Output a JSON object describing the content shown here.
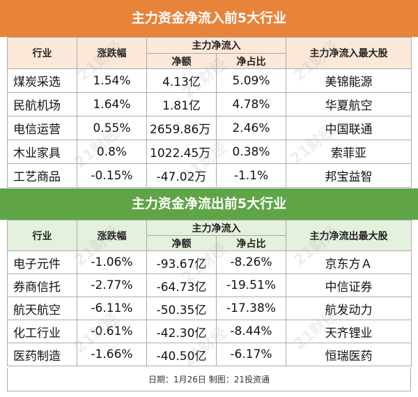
{
  "inflow": {
    "title": "主力资金净流入前5大行业",
    "headers": {
      "industry": "行业",
      "change": "涨跌幅",
      "group": "主力净流入",
      "amount": "净额",
      "ratio": "净占比",
      "top_stock": "主力净流入最大股"
    },
    "rows": [
      {
        "industry": "煤炭采选",
        "change": "1.54%",
        "amount": "4.13亿",
        "ratio": "5.09%",
        "top_stock": "美锦能源"
      },
      {
        "industry": "民航机场",
        "change": "1.64%",
        "amount": "1.81亿",
        "ratio": "4.78%",
        "top_stock": "华夏航空"
      },
      {
        "industry": "电信运营",
        "change": "0.55%",
        "amount": "2659.86万",
        "ratio": "2.46%",
        "top_stock": "中国联通"
      },
      {
        "industry": "木业家具",
        "change": "0.8%",
        "amount": "1022.45万",
        "ratio": "0.38%",
        "top_stock": "索菲亚"
      },
      {
        "industry": "工艺商品",
        "change": "-0.15%",
        "amount": "-47.02万",
        "ratio": "-1.1%",
        "top_stock": "邦宝益智"
      }
    ]
  },
  "outflow": {
    "title": "主力资金净流出前5大行业",
    "headers": {
      "industry": "行业",
      "change": "涨跌幅",
      "group": "主力净流入",
      "amount": "净额",
      "ratio": "净占比",
      "top_stock": "主力净流出最大股"
    },
    "rows": [
      {
        "industry": "电子元件",
        "change": "-1.06%",
        "amount": "-93.67亿",
        "ratio": "-8.26%",
        "top_stock": "京东方Ａ"
      },
      {
        "industry": "券商信托",
        "change": "-2.77%",
        "amount": "-64.73亿",
        "ratio": "-19.51%",
        "top_stock": "中信证券"
      },
      {
        "industry": "航天航空",
        "change": "-6.11%",
        "amount": "-50.35亿",
        "ratio": "-17.38%",
        "top_stock": "航发动力"
      },
      {
        "industry": "化工行业",
        "change": "-0.61%",
        "amount": "-42.30亿",
        "ratio": "-8.44%",
        "top_stock": "天齐锂业"
      },
      {
        "industry": "医药制造",
        "change": "-1.66%",
        "amount": "-40.50亿",
        "ratio": "-6.17%",
        "top_stock": "恒瑞医药"
      }
    ]
  },
  "footer": {
    "text": "日期：1月26日 制图：21投资通"
  },
  "watermark": "21财经",
  "colors": {
    "inflow_title_bg": "#e8833a",
    "inflow_header_bg": "#fce8d8",
    "outflow_title_bg": "#5fa547",
    "outflow_header_bg": "#e4f1dc",
    "border": "#aaaaaa"
  }
}
